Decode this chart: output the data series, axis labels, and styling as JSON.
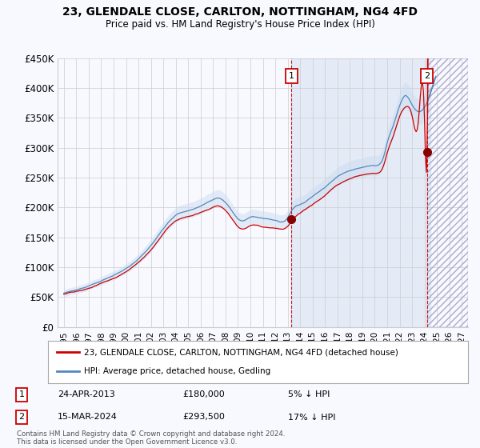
{
  "title": "23, GLENDALE CLOSE, CARLTON, NOTTINGHAM, NG4 4FD",
  "subtitle": "Price paid vs. HM Land Registry's House Price Index (HPI)",
  "ylim": [
    0,
    450000
  ],
  "yticks": [
    0,
    50000,
    100000,
    150000,
    200000,
    250000,
    300000,
    350000,
    400000,
    450000
  ],
  "ytick_labels": [
    "£0",
    "£50K",
    "£100K",
    "£150K",
    "£200K",
    "£250K",
    "£300K",
    "£350K",
    "£400K",
    "£450K"
  ],
  "xtick_years": [
    1995,
    1996,
    1997,
    1998,
    1999,
    2000,
    2001,
    2002,
    2003,
    2004,
    2005,
    2006,
    2007,
    2008,
    2009,
    2010,
    2011,
    2012,
    2013,
    2014,
    2015,
    2016,
    2017,
    2018,
    2019,
    2020,
    2021,
    2022,
    2023,
    2024,
    2025,
    2026,
    2027
  ],
  "xlim": [
    1994.5,
    2027.5
  ],
  "transaction1": {
    "date": "24-APR-2013",
    "price": 180000,
    "year": 2013.31,
    "label": "1",
    "pct": "5%",
    "direction": "↓"
  },
  "transaction2": {
    "date": "15-MAR-2024",
    "price": 293500,
    "year": 2024.21,
    "label": "2",
    "pct": "17%",
    "direction": "↓"
  },
  "line_red_color": "#cc0000",
  "line_blue_color": "#5588bb",
  "line_blue_fill": "#ccddef",
  "background_color": "#f8f8ff",
  "grid_color": "#cccccc",
  "legend_label_red": "23, GLENDALE CLOSE, CARLTON, NOTTINGHAM, NG4 4FD (detached house)",
  "legend_label_blue": "HPI: Average price, detached house, Gedling",
  "footnote": "Contains HM Land Registry data © Crown copyright and database right 2024.\nThis data is licensed under the Open Government Licence v3.0."
}
